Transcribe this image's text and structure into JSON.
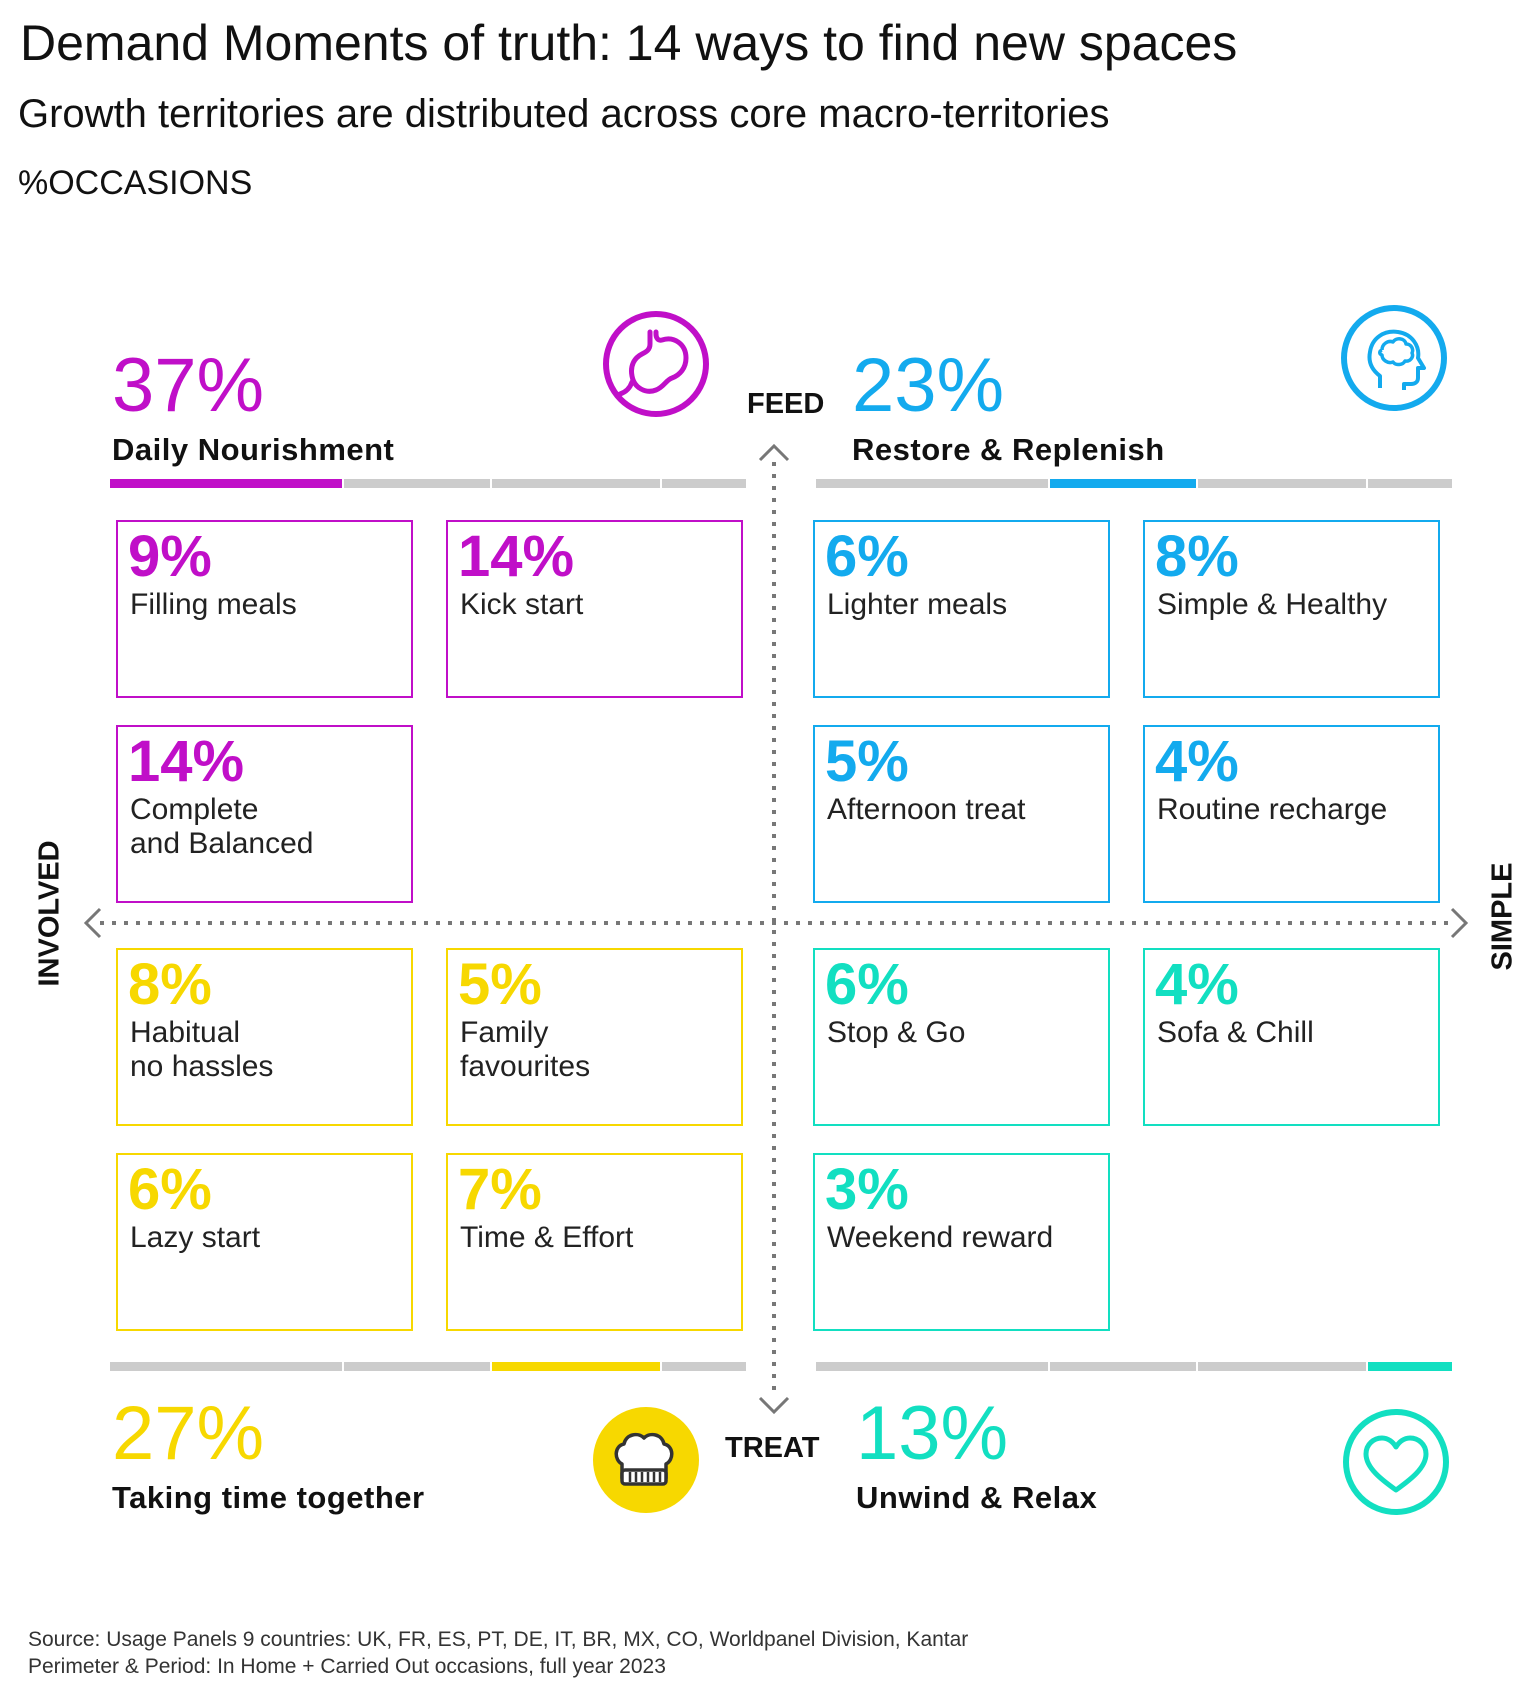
{
  "header": {
    "title": "Demand Moments of truth: 14 ways to find new spaces",
    "subtitle": "Growth territories are distributed across core macro-territories",
    "unit": "%OCCASIONS"
  },
  "axes": {
    "top": "FEED",
    "bottom": "TREAT",
    "left": "INVOLVED",
    "right": "SIMPLE"
  },
  "colors": {
    "purple": "#c00fc8",
    "blue": "#13aaee",
    "yellow": "#f7d800",
    "teal": "#12dfc1",
    "grey_bar": "#cccccc"
  },
  "quadrants": {
    "daily": {
      "pct": "37%",
      "name": "Daily Nourishment",
      "icon": "stomach-icon",
      "boxes": [
        {
          "pct": "9%",
          "label": "Filling meals"
        },
        {
          "pct": "14%",
          "label": "Kick start"
        },
        {
          "pct": "14%",
          "label": "Complete\nand Balanced"
        }
      ]
    },
    "restore": {
      "pct": "23%",
      "name": "Restore & Replenish",
      "icon": "brain-head-icon",
      "boxes": [
        {
          "pct": "6%",
          "label": "Lighter meals"
        },
        {
          "pct": "8%",
          "label": "Simple & Healthy"
        },
        {
          "pct": "5%",
          "label": "Afternoon treat"
        },
        {
          "pct": "4%",
          "label": "Routine recharge"
        }
      ]
    },
    "together": {
      "pct": "27%",
      "name": "Taking time together",
      "icon": "chef-hat-icon",
      "boxes": [
        {
          "pct": "8%",
          "label": "Habitual\nno hassles"
        },
        {
          "pct": "5%",
          "label": "Family\nfavourites"
        },
        {
          "pct": "6%",
          "label": "Lazy start"
        },
        {
          "pct": "7%",
          "label": "Time & Effort"
        }
      ]
    },
    "unwind": {
      "pct": "13%",
      "name": "Unwind & Relax",
      "icon": "heart-icon",
      "boxes": [
        {
          "pct": "6%",
          "label": "Stop & Go"
        },
        {
          "pct": "4%",
          "label": "Sofa & Chill"
        },
        {
          "pct": "3%",
          "label": "Weekend reward"
        }
      ]
    }
  },
  "source": {
    "line1": "Source: Usage Panels 9 countries: UK, FR, ES, PT, DE, IT, BR, MX, CO, Worldpanel Division, Kantar",
    "line2": "Perimeter & Period: In Home + Carried Out occasions, full year 2023"
  }
}
